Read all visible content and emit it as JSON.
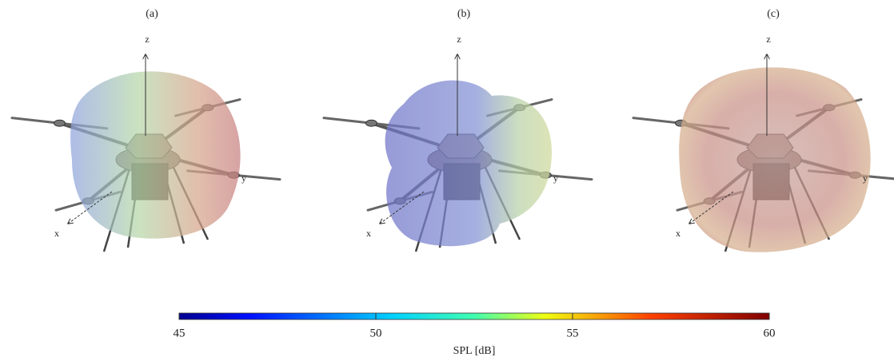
{
  "panels": [
    {
      "label": "(a)",
      "z": "z",
      "y": "y",
      "x": "x"
    },
    {
      "label": "(b)",
      "z": "z",
      "y": "y",
      "x": "x"
    },
    {
      "label": "(c)",
      "z": "z",
      "y": "y",
      "x": "x"
    }
  ],
  "colorbar": {
    "label": "SPL [dB]",
    "lim": [
      45,
      60
    ],
    "ticks": [
      45,
      50,
      55,
      60
    ]
  }
}
